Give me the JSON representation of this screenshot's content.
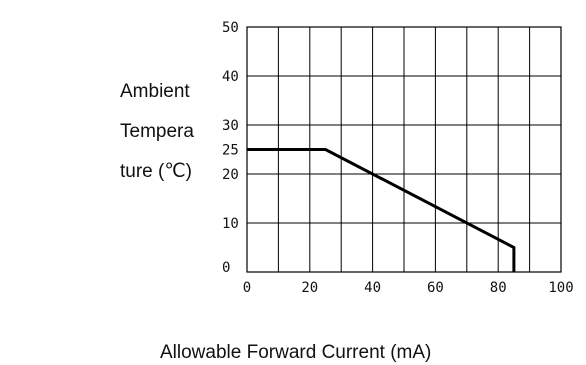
{
  "chart_data": {
    "type": "line",
    "title": "",
    "ylabel_lines": [
      "Ambient",
      "Tempera",
      "ture (℃)"
    ],
    "xlabel": "Allowable Forward Current (mA)",
    "xlim": [
      0,
      100
    ],
    "ylim": [
      0,
      50
    ],
    "x_ticks": [
      0,
      20,
      40,
      60,
      80,
      100
    ],
    "x_tick_labels": [
      "0",
      "20",
      "40",
      "60",
      "80",
      "100"
    ],
    "y_ticks": [
      0,
      10,
      20,
      25,
      30,
      40,
      50
    ],
    "y_tick_labels": [
      "0",
      "10",
      "20",
      "25",
      "30",
      "40",
      "50"
    ],
    "grid_x": [
      0,
      10,
      20,
      30,
      40,
      50,
      60,
      70,
      80,
      90,
      100
    ],
    "grid_y": [
      0,
      10,
      20,
      30,
      40,
      50
    ],
    "grid": true,
    "series": [
      {
        "x": [
          0,
          25,
          85,
          85
        ],
        "y": [
          25,
          25,
          5,
          0
        ]
      }
    ]
  }
}
